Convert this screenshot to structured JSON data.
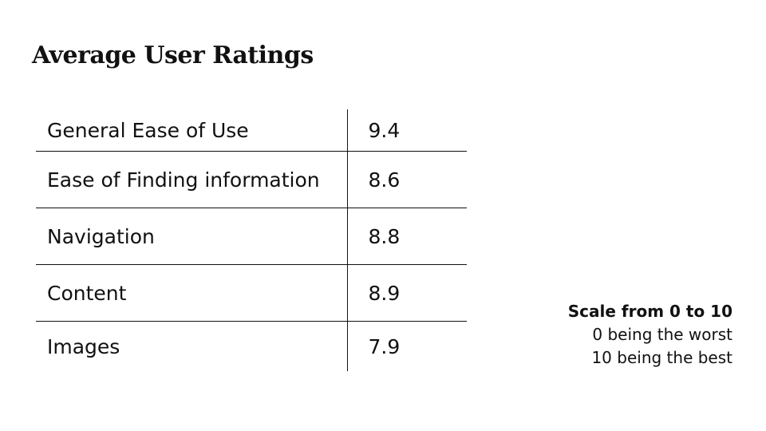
{
  "title": "Average User Ratings",
  "ratings": [
    {
      "label": "General Ease of Use",
      "value": "9.4"
    },
    {
      "label": "Ease of Finding information",
      "value": "8.6"
    },
    {
      "label": "Navigation",
      "value": "8.8"
    },
    {
      "label": "Content",
      "value": "8.9"
    },
    {
      "label": "Images",
      "value": "7.9"
    }
  ],
  "scale_note": {
    "title": "Scale from 0 to 10",
    "line1": "0 being the worst",
    "line2": "10 being the best"
  }
}
